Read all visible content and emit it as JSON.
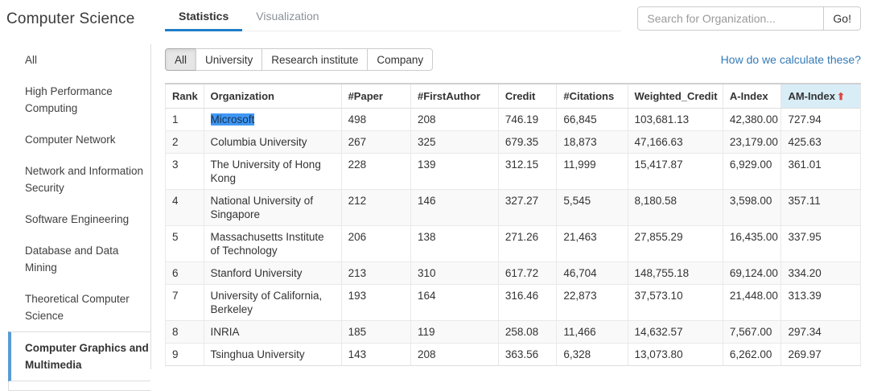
{
  "sidebar": {
    "title": "Computer Science",
    "items": [
      {
        "label": "All",
        "selected": false
      },
      {
        "label": "High Performance Computing",
        "selected": false
      },
      {
        "label": "Computer Network",
        "selected": false
      },
      {
        "label": "Network and Information Security",
        "selected": false
      },
      {
        "label": "Software Engineering",
        "selected": false
      },
      {
        "label": "Database and Data Mining",
        "selected": false
      },
      {
        "label": "Theoretical Computer Science",
        "selected": false
      },
      {
        "label": "Computer Graphics and Multimedia",
        "selected": true
      }
    ]
  },
  "tabs": [
    {
      "label": "Statistics",
      "active": true
    },
    {
      "label": "Visualization",
      "active": false
    }
  ],
  "search": {
    "placeholder": "Search for Organization...",
    "button_label": "Go!"
  },
  "filters": {
    "options": [
      "All",
      "University",
      "Research institute",
      "Company"
    ],
    "active": "All"
  },
  "calc_link": "How do we calculate these?",
  "table": {
    "columns": [
      "Rank",
      "Organization",
      "#Paper",
      "#FirstAuthor",
      "Credit",
      "#Citations",
      "Weighted_Credit",
      "A-Index",
      "AM-Index"
    ],
    "sort": {
      "column": "AM-Index",
      "direction": "up",
      "arrow_glyph": "⬆"
    },
    "rows": [
      [
        "1",
        "Microsoft",
        "498",
        "208",
        "746.19",
        "66,845",
        "103,681.13",
        "42,380.00",
        "727.94"
      ],
      [
        "2",
        "Columbia University",
        "267",
        "325",
        "679.35",
        "18,873",
        "47,166.63",
        "23,179.00",
        "425.63"
      ],
      [
        "3",
        "The University of Hong Kong",
        "228",
        "139",
        "312.15",
        "11,999",
        "15,417.87",
        "6,929.00",
        "361.01"
      ],
      [
        "4",
        "National University of Singapore",
        "212",
        "146",
        "327.27",
        "5,545",
        "8,180.58",
        "3,598.00",
        "357.11"
      ],
      [
        "5",
        "Massachusetts Institute of Technology",
        "206",
        "138",
        "271.26",
        "21,463",
        "27,855.29",
        "16,435.00",
        "337.95"
      ],
      [
        "6",
        "Stanford University",
        "213",
        "310",
        "617.72",
        "46,704",
        "148,755.18",
        "69,124.00",
        "334.20"
      ],
      [
        "7",
        "University of California, Berkeley",
        "193",
        "164",
        "316.46",
        "22,873",
        "37,573.10",
        "21,448.00",
        "313.39"
      ],
      [
        "8",
        "INRIA",
        "185",
        "119",
        "258.08",
        "11,466",
        "14,632.57",
        "7,567.00",
        "297.34"
      ],
      [
        "9",
        "Tsinghua University",
        "143",
        "208",
        "363.56",
        "6,328",
        "13,073.80",
        "6,262.00",
        "269.97"
      ]
    ],
    "text_selection": {
      "row_index": 0,
      "col_index": 1
    }
  },
  "colors": {
    "accent_blue": "#1e7ec8",
    "active_nav_bar_blue": "#5a9bd4",
    "link_blue": "#337ab7",
    "sorted_header_bg": "#d9edf7",
    "sort_arrow_red": "#d9453d",
    "selection_bg": "#3f97f5"
  }
}
